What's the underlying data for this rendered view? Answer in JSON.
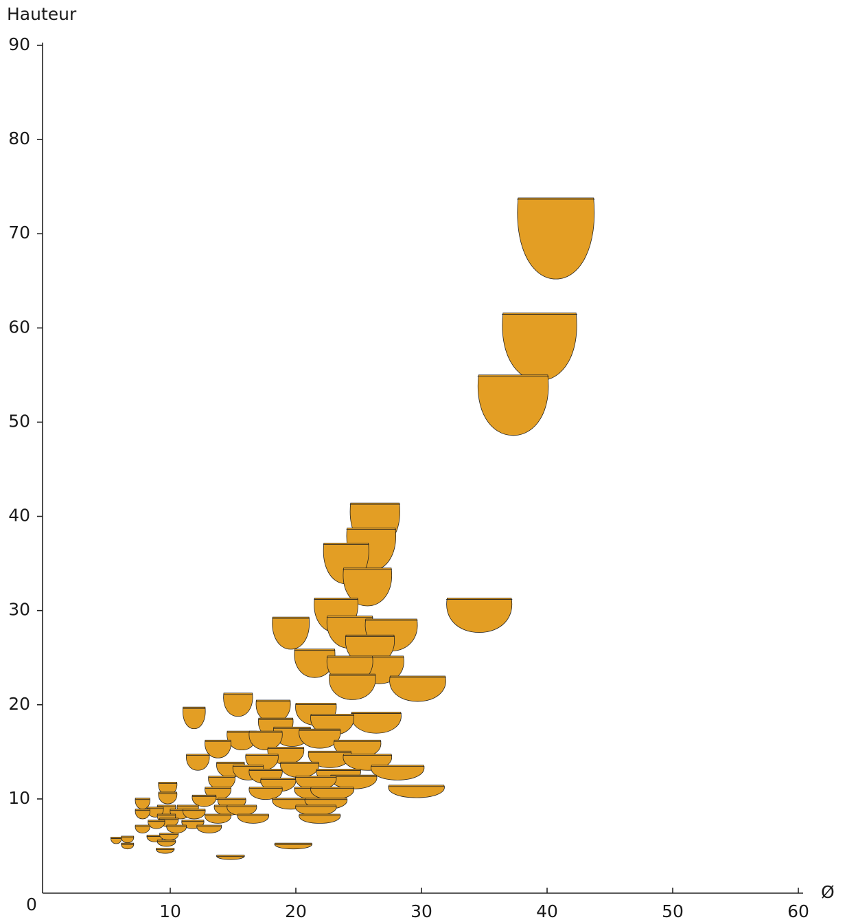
{
  "chart_data": {
    "type": "scatter",
    "y_label": "Hauteur",
    "x_label": "Ø",
    "color": "#e39e24",
    "xlim": [
      0,
      60
    ],
    "ylim": [
      0,
      90
    ],
    "xticks": [
      10,
      20,
      30,
      40,
      50,
      60
    ],
    "yticks": [
      0,
      10,
      20,
      30,
      40,
      50,
      60,
      70,
      80,
      90
    ],
    "x": [
      40.7,
      39.4,
      37.3,
      34.6,
      26.3,
      26.0,
      24.0,
      25.7,
      23.2,
      24.3,
      27.6,
      19.6,
      25.9,
      21.5,
      26.6,
      24.3,
      24.5,
      29.7,
      15.4,
      11.9,
      18.2,
      21.6,
      26.4,
      22.9,
      18.4,
      19.7,
      15.7,
      17.6,
      13.8,
      21.9,
      24.9,
      12.2,
      22.7,
      25.7,
      19.2,
      17.3,
      14.8,
      16.2,
      20.3,
      23.4,
      28.1,
      17.6,
      24.6,
      18.6,
      21.6,
      14.1,
      29.6,
      17.6,
      9.8,
      13.8,
      21.5,
      22.9,
      9.8,
      12.7,
      7.8,
      14.9,
      19.6,
      22.4,
      11.4,
      9.7,
      8.8,
      14.6,
      15.7,
      7.8,
      10.8,
      11.9,
      21.6,
      9.7,
      13.8,
      16.6,
      21.9,
      9.9,
      11.8,
      8.9,
      7.8,
      10.5,
      13.1,
      8.8,
      9.9,
      5.7,
      6.6,
      9.7,
      6.6,
      19.8,
      9.6,
      14.8
    ],
    "values": [
      69.5,
      58.0,
      51.8,
      29.5,
      39.0,
      36.5,
      35.0,
      32.5,
      29.5,
      27.7,
      27.4,
      27.6,
      25.8,
      24.4,
      23.7,
      23.7,
      21.9,
      21.7,
      20.0,
      18.6,
      19.3,
      19.0,
      18.1,
      17.9,
      17.5,
      16.6,
      16.2,
      16.2,
      15.3,
      16.4,
      15.3,
      13.9,
      14.2,
      13.9,
      14.6,
      13.9,
      13.1,
      12.8,
      13.1,
      12.4,
      12.8,
      12.4,
      11.8,
      11.5,
      11.7,
      11.7,
      10.8,
      10.6,
      11.1,
      10.6,
      10.6,
      10.6,
      10.1,
      9.8,
      9.5,
      9.5,
      9.5,
      9.5,
      8.8,
      8.8,
      8.6,
      8.8,
      8.8,
      8.4,
      8.4,
      8.4,
      8.8,
      7.9,
      7.9,
      7.9,
      7.9,
      7.5,
      7.3,
      7.3,
      6.8,
      6.8,
      6.8,
      5.8,
      6.0,
      5.6,
      5.7,
      5.3,
      5.0,
      5.0,
      4.5,
      3.8
    ]
  }
}
